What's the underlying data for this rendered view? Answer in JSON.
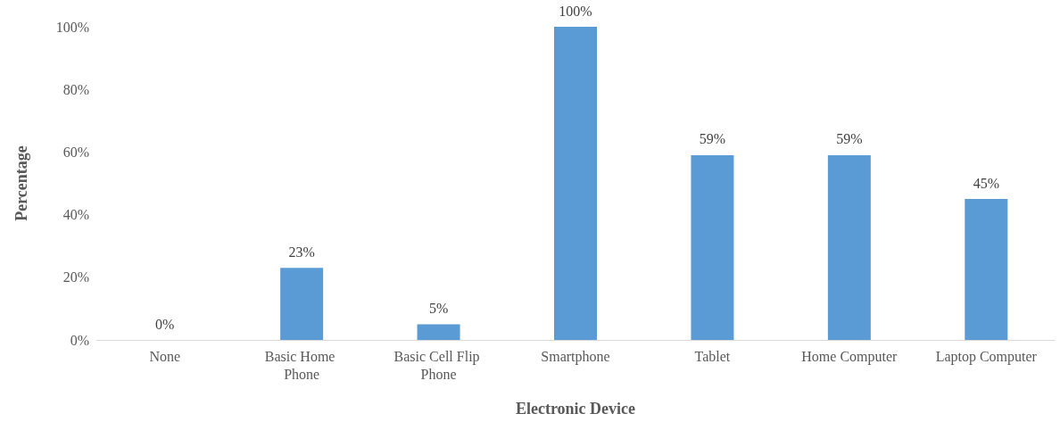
{
  "chart_data": {
    "type": "bar",
    "xlabel": "Electronic Device",
    "ylabel": "Percentage",
    "categories": [
      "None",
      "Basic Home Phone",
      "Basic Cell Flip Phone",
      "Smartphone",
      "Tablet",
      "Home Computer",
      "Laptop Computer"
    ],
    "values": [
      0,
      23,
      5,
      100,
      59,
      59,
      45
    ],
    "color": "#5b9bd5",
    "value_labels": [
      "0%",
      "23%",
      "5%",
      "100%",
      "59%",
      "59%",
      "45%"
    ],
    "ylim": [
      0,
      100
    ],
    "yticks": [
      {
        "value": 0,
        "label": "0%"
      },
      {
        "value": 20,
        "label": "20%"
      },
      {
        "value": 40,
        "label": "40%"
      },
      {
        "value": 60,
        "label": "60%"
      },
      {
        "value": 80,
        "label": "80%"
      },
      {
        "value": 100,
        "label": "100%"
      }
    ],
    "grid": false
  }
}
